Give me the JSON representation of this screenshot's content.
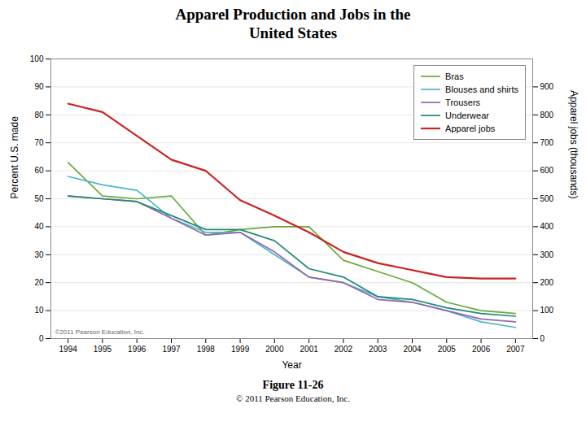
{
  "chart_data": {
    "type": "line",
    "title": "Apparel Production and Jobs in the\nUnited States",
    "x_label": "Year",
    "y_label": "Percent U.S. made",
    "y2_label": "Apparel jobs (thousands)",
    "caption": "Figure 11-26",
    "credit": "© 2011 Pearson Education, Inc.",
    "annotations": [
      "©2011 Pearson Education, Inc."
    ],
    "x": [
      1994,
      1995,
      1996,
      1997,
      1998,
      1999,
      2000,
      2001,
      2002,
      2003,
      2004,
      2005,
      2006,
      2007
    ],
    "series": [
      {
        "name": "Bras",
        "color": "#6aaa3a",
        "values": [
          63,
          51,
          50,
          51,
          37,
          39,
          40,
          40,
          28,
          24,
          20,
          13,
          10,
          9
        ]
      },
      {
        "name": "Blouses and shirts",
        "color": "#4ab8c8",
        "values": [
          58,
          55,
          53,
          43,
          38,
          38,
          30,
          22,
          20,
          15,
          13,
          10,
          6,
          4
        ]
      },
      {
        "name": "Trousers",
        "color": "#9966aa",
        "values": [
          51,
          50,
          49,
          43,
          37,
          38,
          31,
          22,
          20,
          14,
          13,
          10,
          7,
          6
        ]
      },
      {
        "name": "Underwear",
        "color": "#228877",
        "values": [
          51,
          50,
          49,
          44,
          39,
          39,
          35,
          25,
          22,
          15,
          14,
          11,
          9,
          8
        ]
      },
      {
        "name": "Apparel jobs",
        "color": "#cc2222",
        "axis": "y2",
        "values": [
          840,
          810,
          725,
          640,
          600,
          495,
          440,
          380,
          310,
          270,
          245,
          220,
          215,
          215
        ]
      }
    ],
    "xlim": [
      1993.5,
      2007.5
    ],
    "xticks": [
      1994,
      1995,
      1996,
      1997,
      1998,
      1999,
      2000,
      2001,
      2002,
      2003,
      2004,
      2005,
      2006,
      2007
    ],
    "ylim": [
      0,
      100
    ],
    "yticks": [
      0,
      10,
      20,
      30,
      40,
      50,
      60,
      70,
      80,
      90,
      100
    ],
    "y2lim": [
      0,
      1000
    ],
    "y2ticks": [
      0,
      100,
      200,
      300,
      400,
      500,
      600,
      700,
      800,
      900
    ],
    "grid": true,
    "legend": "upper right"
  }
}
